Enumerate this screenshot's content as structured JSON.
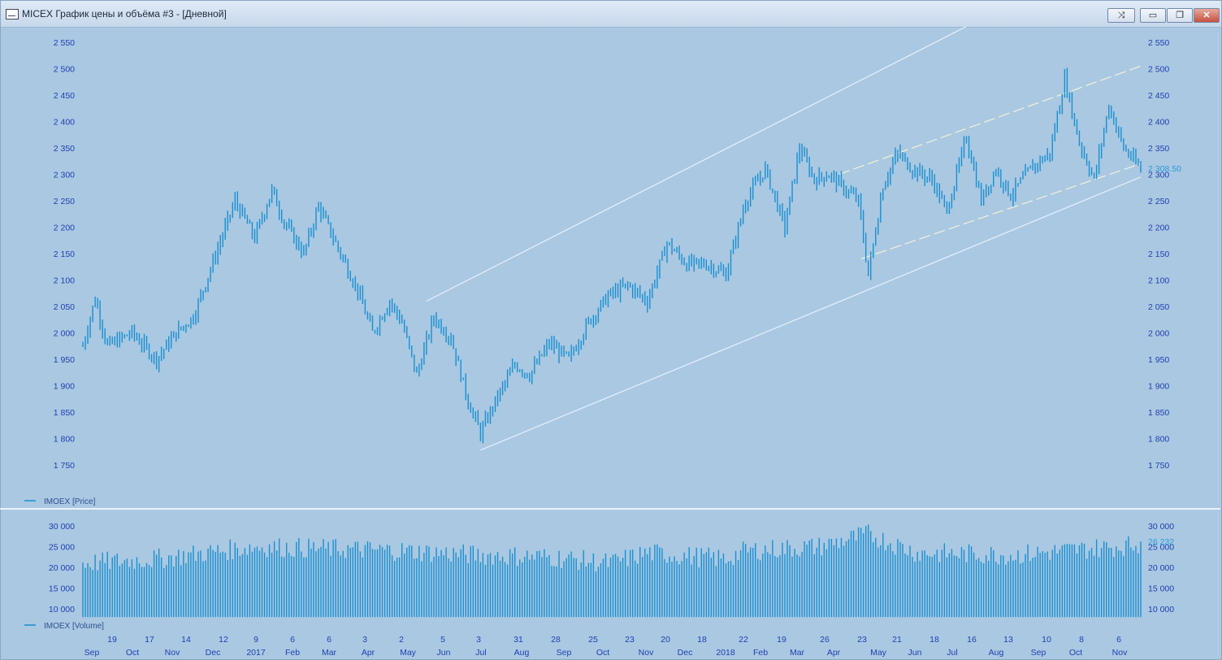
{
  "window": {
    "title": "MICEX График цены и объёма #3 - [Дневной]",
    "buttons": [
      "⤨",
      "▭",
      "❐",
      "✕"
    ]
  },
  "colors": {
    "background": "#aac8e2",
    "series": "#1a8fd0",
    "axis_text": "#1f3fb0",
    "trend_line": "#e8f1fb",
    "dashed_line": "#f3f3d6"
  },
  "chart_data": [
    {
      "type": "bar",
      "series_name": "IMOEX [Price]",
      "ylim": [
        1730,
        2580
      ],
      "yticks": [
        2550,
        2500,
        2450,
        2400,
        2350,
        2300,
        2250,
        2200,
        2150,
        2100,
        2050,
        2000,
        1950,
        1900,
        1850,
        1800,
        1750
      ],
      "ytick_labels": [
        "2 550",
        "2 500",
        "2 450",
        "2 400",
        "2 350",
        "2 300",
        "2 250",
        "2 200",
        "2 150",
        "2 100",
        "2 050",
        "2 000",
        "1 950",
        "1 900",
        "1 850",
        "1 800",
        "1 750"
      ],
      "last_value_label": "2 308.50",
      "last_value": 2308.5,
      "anchors": [
        [
          0,
          1975
        ],
        [
          5,
          2065
        ],
        [
          10,
          1975
        ],
        [
          20,
          2000
        ],
        [
          30,
          1950
        ],
        [
          38,
          2000
        ],
        [
          45,
          2030
        ],
        [
          55,
          2160
        ],
        [
          62,
          2250
        ],
        [
          70,
          2180
        ],
        [
          77,
          2270
        ],
        [
          82,
          2210
        ],
        [
          90,
          2150
        ],
        [
          96,
          2240
        ],
        [
          104,
          2160
        ],
        [
          112,
          2080
        ],
        [
          118,
          2000
        ],
        [
          125,
          2060
        ],
        [
          130,
          2020
        ],
        [
          136,
          1920
        ],
        [
          143,
          2030
        ],
        [
          150,
          1990
        ],
        [
          157,
          1870
        ],
        [
          162,
          1810
        ],
        [
          168,
          1870
        ],
        [
          176,
          1940
        ],
        [
          182,
          1920
        ],
        [
          190,
          1980
        ],
        [
          198,
          1950
        ],
        [
          206,
          2020
        ],
        [
          214,
          2070
        ],
        [
          222,
          2090
        ],
        [
          230,
          2060
        ],
        [
          238,
          2170
        ],
        [
          246,
          2130
        ],
        [
          254,
          2130
        ],
        [
          262,
          2110
        ],
        [
          270,
          2250
        ],
        [
          278,
          2310
        ],
        [
          286,
          2200
        ],
        [
          292,
          2350
        ],
        [
          298,
          2290
        ],
        [
          304,
          2300
        ],
        [
          311,
          2270
        ],
        [
          316,
          2250
        ],
        [
          320,
          2110
        ],
        [
          326,
          2280
        ],
        [
          332,
          2340
        ],
        [
          338,
          2310
        ],
        [
          346,
          2290
        ],
        [
          352,
          2230
        ],
        [
          360,
          2370
        ],
        [
          366,
          2250
        ],
        [
          372,
          2310
        ],
        [
          378,
          2260
        ],
        [
          386,
          2310
        ],
        [
          394,
          2340
        ],
        [
          400,
          2480
        ],
        [
          406,
          2360
        ],
        [
          412,
          2290
        ],
        [
          418,
          2430
        ],
        [
          424,
          2350
        ],
        [
          431,
          2310
        ]
      ],
      "n_bars": 432,
      "trend_lines": [
        {
          "style": "solid",
          "from": [
            140,
            2060
          ],
          "to": [
            360,
            2580
          ]
        },
        {
          "style": "solid",
          "from": [
            162,
            1778
          ],
          "to": [
            431,
            2295
          ]
        },
        {
          "style": "dashed",
          "from": [
            308,
            2300
          ],
          "to": [
            431,
            2505
          ]
        },
        {
          "style": "dashed",
          "from": [
            317,
            2140
          ],
          "to": [
            431,
            2320
          ]
        }
      ]
    },
    {
      "type": "bar",
      "series_name": "IMOEX [Volume]",
      "ylim": [
        8000,
        31000
      ],
      "yticks": [
        30000,
        25000,
        20000,
        15000,
        10000
      ],
      "ytick_labels": [
        "30 000",
        "25 000",
        "20 000",
        "15 000",
        "10 000"
      ],
      "last_value_label": "26 232",
      "last_value": 26232,
      "anchors": [
        [
          0,
          21000
        ],
        [
          30,
          22000
        ],
        [
          50,
          23500
        ],
        [
          70,
          25000
        ],
        [
          100,
          24500
        ],
        [
          130,
          24000
        ],
        [
          160,
          23000
        ],
        [
          190,
          22500
        ],
        [
          215,
          21000
        ],
        [
          230,
          23500
        ],
        [
          262,
          22000
        ],
        [
          270,
          24000
        ],
        [
          300,
          25000
        ],
        [
          320,
          28000
        ],
        [
          340,
          23500
        ],
        [
          380,
          23000
        ],
        [
          400,
          24000
        ],
        [
          431,
          25500
        ]
      ]
    }
  ],
  "x_axis": {
    "day_labels": [
      "19",
      "17",
      "14",
      "12",
      "9",
      "6",
      "6",
      "3",
      "2",
      "5",
      "3",
      "31",
      "28",
      "25",
      "23",
      "20",
      "18",
      "22",
      "19",
      "26",
      "23",
      "21",
      "18",
      "16",
      "13",
      "10",
      "8",
      "6"
    ],
    "month_labels": [
      "Sep",
      "Oct",
      "Nov",
      "Dec",
      "2017",
      "Feb",
      "Mar",
      "Apr",
      "May",
      "Jun",
      "Jul",
      "Aug",
      "Sep",
      "Oct",
      "Nov",
      "Dec",
      "2018",
      "Feb",
      "Mar",
      "Apr",
      "May",
      "Jun",
      "Jul",
      "Aug",
      "Sep",
      "Oct",
      "Nov"
    ]
  }
}
